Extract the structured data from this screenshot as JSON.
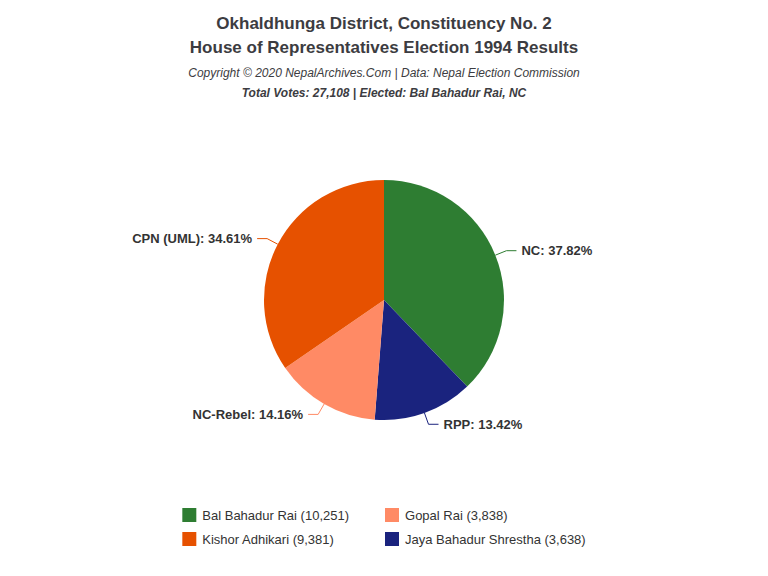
{
  "chart_data": {
    "type": "pie",
    "title": "Okhaldhunga District, Constituency No. 2",
    "subtitle": "House of Representatives Election 1994 Results",
    "annotations": [
      "Copyright © 2020 NepalArchives.Com | Data: Nepal Election Commission",
      "Total Votes: 27,108 | Elected: Bal Bahadur Rai, NC"
    ],
    "categories": [
      "NC",
      "RPP",
      "NC-Rebel",
      "CPN (UML)"
    ],
    "values": [
      37.82,
      13.42,
      14.16,
      34.61
    ],
    "value_labels": [
      "NC: 37.82%",
      "RPP: 13.42%",
      "NC-Rebel: 14.16%",
      "CPN (UML): 34.61%"
    ],
    "colors": [
      "#2E7D32",
      "#1A237E",
      "#FF8A65",
      "#E65100"
    ],
    "data_labels": true,
    "legend": "bottom",
    "legend_entries": [
      {
        "label": "Bal Bahadur Rai (10,251)",
        "color": "#2E7D32"
      },
      {
        "label": "Kishor Adhikari (9,381)",
        "color": "#E65100"
      },
      {
        "label": "Gopal Rai (3,838)",
        "color": "#FF8A65"
      },
      {
        "label": "Jaya Bahadur Shrestha (3,638)",
        "color": "#1A237E"
      }
    ]
  }
}
